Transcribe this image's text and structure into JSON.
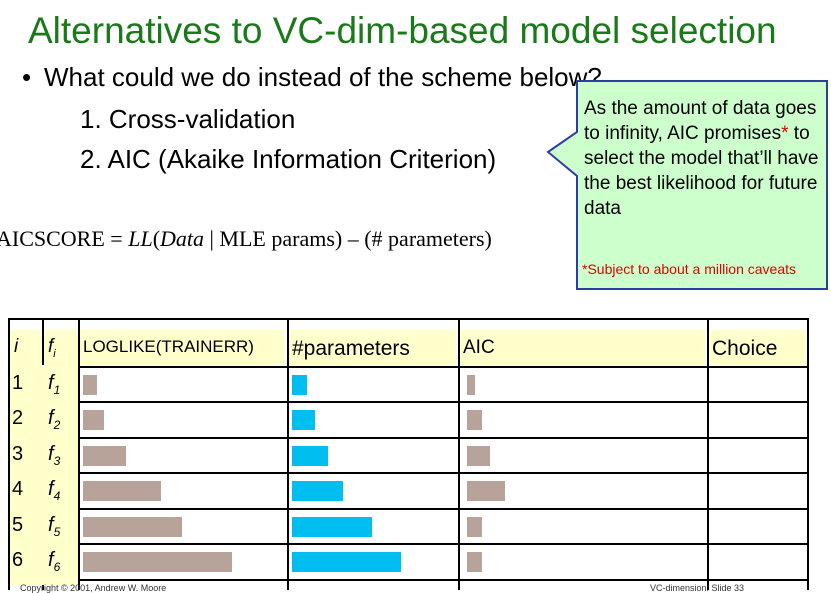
{
  "title": "Alternatives to VC-dim-based model selection",
  "bullet": "What could we do instead of the scheme below?",
  "items": [
    "1.  Cross-validation",
    "2.  AIC (Akaike Information Criterion)"
  ],
  "formula": {
    "left": "AICSCORE",
    "eq": " = ",
    "ll": "LL",
    "paren_open": "(",
    "data": "Data",
    "rest": " | MLE params) – (# parameters)"
  },
  "callout": {
    "text_a": "As the amount of data goes to infinity, AIC promises",
    "star": "*",
    "text_b": " to select the model that’ll have the best likelihood for future data",
    "note": "*Subject to about a million caveats"
  },
  "table": {
    "headers": {
      "i": "i",
      "f": "f",
      "f_sub": "i",
      "loglike": "LOGLIKE(TRAINERR)",
      "params": "#parameters",
      "aic": "AIC",
      "choice": "Choice"
    },
    "rows": [
      {
        "i": "1",
        "f": "f",
        "sub": "1",
        "loglike": 1,
        "params": 1,
        "aic": 1
      },
      {
        "i": "2",
        "f": "f",
        "sub": "2",
        "loglike": 1.5,
        "params": 1.6,
        "aic": 2
      },
      {
        "i": "3",
        "f": "f",
        "sub": "3",
        "loglike": 3,
        "params": 2.5,
        "aic": 3
      },
      {
        "i": "4",
        "f": "f",
        "sub": "4",
        "loglike": 5.5,
        "params": 3.5,
        "aic": 5
      },
      {
        "i": "5",
        "f": "f",
        "sub": "5",
        "loglike": 7,
        "params": 5.5,
        "aic": 2
      },
      {
        "i": "6",
        "f": "f",
        "sub": "6",
        "loglike": 10.5,
        "params": 7.5,
        "aic": 2
      }
    ]
  },
  "colors": {
    "title": "#1a7a1a",
    "loglike_bar": "#b8a39b",
    "params_bar": "#00bff0",
    "aic_bar": "#b8a39b",
    "callout_fill": "#ccffcc",
    "callout_border": "#2c3f9e",
    "header_fill": "#ffffcc"
  },
  "footer": {
    "left": "Copyright © 2001, Andrew W. Moore",
    "right": "VC-dimension: Slide 33"
  }
}
